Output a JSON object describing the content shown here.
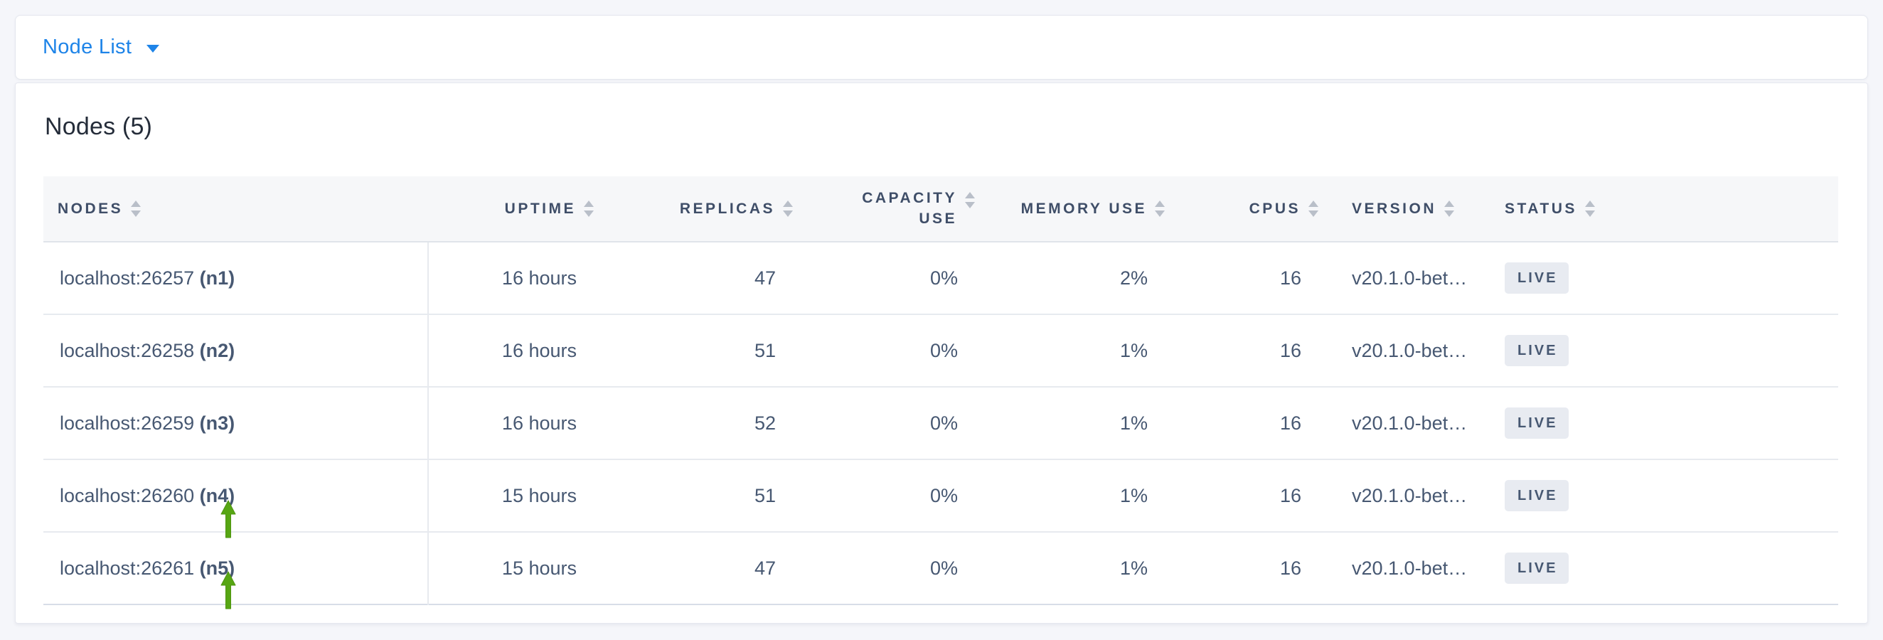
{
  "colors": {
    "accent": "#1e84e8",
    "arrow": "#57a613",
    "badge_bg": "#e8ebf1",
    "body_text": "#475872",
    "header_text": "#3f4e68"
  },
  "dropdown": {
    "label": "Node List",
    "caret_icon": "caret-down-icon"
  },
  "panel": {
    "title": "Nodes (5)"
  },
  "table": {
    "columns": [
      {
        "key": "nodes",
        "label": "NODES"
      },
      {
        "key": "uptime",
        "label": "UPTIME"
      },
      {
        "key": "replicas",
        "label": "REPLICAS"
      },
      {
        "key": "capacity_use",
        "label": "CAPACITY USE",
        "label_lines": [
          "CAPACITY",
          "USE"
        ]
      },
      {
        "key": "memory_use",
        "label": "MEMORY USE"
      },
      {
        "key": "cpus",
        "label": "CPUS"
      },
      {
        "key": "version",
        "label": "VERSION"
      },
      {
        "key": "status",
        "label": "STATUS"
      }
    ],
    "rows": [
      {
        "nodes": "localhost:26257",
        "node_id": "(n1)",
        "uptime": "16 hours",
        "replicas": "47",
        "capacity_use": "0%",
        "memory_use": "2%",
        "cpus": "16",
        "version": "v20.1.0-bet…",
        "status": "LIVE"
      },
      {
        "nodes": "localhost:26258",
        "node_id": "(n2)",
        "uptime": "16 hours",
        "replicas": "51",
        "capacity_use": "0%",
        "memory_use": "1%",
        "cpus": "16",
        "version": "v20.1.0-bet…",
        "status": "LIVE"
      },
      {
        "nodes": "localhost:26259",
        "node_id": "(n3)",
        "uptime": "16 hours",
        "replicas": "52",
        "capacity_use": "0%",
        "memory_use": "1%",
        "cpus": "16",
        "version": "v20.1.0-bet…",
        "status": "LIVE"
      },
      {
        "nodes": "localhost:26260",
        "node_id": "(n4)",
        "uptime": "15 hours",
        "replicas": "51",
        "capacity_use": "0%",
        "memory_use": "1%",
        "cpus": "16",
        "version": "v20.1.0-bet…",
        "status": "LIVE"
      },
      {
        "nodes": "localhost:26261",
        "node_id": "(n5)",
        "uptime": "15 hours",
        "replicas": "47",
        "capacity_use": "0%",
        "memory_use": "1%",
        "cpus": "16",
        "version": "v20.1.0-bet…",
        "status": "LIVE"
      }
    ]
  },
  "annotations": {
    "arrows": [
      {
        "points_to": "(n4)"
      },
      {
        "points_to": "(n5)"
      }
    ]
  }
}
